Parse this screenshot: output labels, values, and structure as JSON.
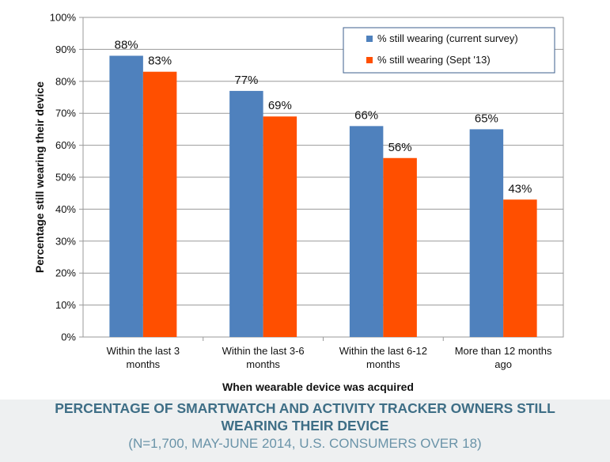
{
  "chart_data": {
    "type": "bar",
    "title": "",
    "xlabel": "When wearable device was acquired",
    "ylabel": "Percentage still wearing their device",
    "ylim": [
      0,
      100
    ],
    "yticks": [
      "0%",
      "10%",
      "20%",
      "30%",
      "40%",
      "50%",
      "60%",
      "70%",
      "80%",
      "90%",
      "100%"
    ],
    "categories": [
      [
        "Within the last 3",
        "months"
      ],
      [
        "Within the last 3-6",
        "months"
      ],
      [
        "Within the last 6-12",
        "months"
      ],
      [
        "More than 12 months",
        "ago"
      ]
    ],
    "series": [
      {
        "name": "% still wearing (current survey)",
        "values": [
          88,
          77,
          66,
          65
        ],
        "labels": [
          "88%",
          "77%",
          "66%",
          "65%"
        ],
        "color": "#4f81bd"
      },
      {
        "name": "% still wearing (Sept '13)",
        "values": [
          83,
          69,
          56,
          43
        ],
        "labels": [
          "83%",
          "69%",
          "56%",
          "43%"
        ],
        "color": "#ff4f00"
      }
    ],
    "grid": true,
    "legend_position": "top-right"
  },
  "caption": {
    "title_line1": "PERCENTAGE OF SMARTWATCH AND ACTIVITY TRACKER OWNERS STILL",
    "title_line2": "WEARING THEIR DEVICE",
    "subtitle": "(N=1,700, MAY-JUNE 2014, U.S. CONSUMERS OVER 18)"
  }
}
